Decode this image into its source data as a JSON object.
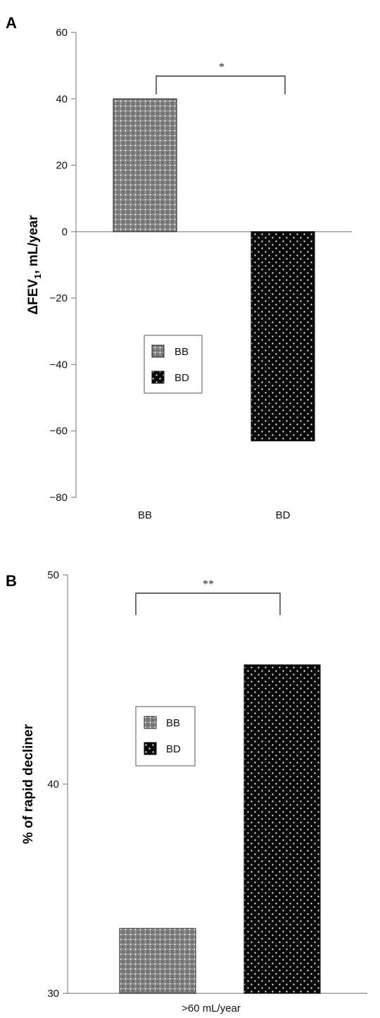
{
  "chart_data": [
    {
      "panel": "A",
      "type": "bar",
      "categories": [
        "BB",
        "BD"
      ],
      "values": [
        40,
        -63
      ],
      "ylabel_main": "ΔFEV",
      "ylabel_sub": "1",
      "ylabel_rest": ", mL/year",
      "ylim": [
        -80,
        60
      ],
      "yticks": [
        60,
        40,
        20,
        0,
        -20,
        -40,
        -60,
        -80
      ],
      "ytick_labels": [
        "60",
        "40",
        "20",
        "0",
        "−20",
        "−40",
        "−60",
        "−80"
      ],
      "significance": "*",
      "legend": [
        "BB",
        "BD"
      ],
      "legend_placement": "center-left",
      "grid": false
    },
    {
      "panel": "B",
      "type": "bar",
      "categories": [
        "BB",
        "BD"
      ],
      "values": [
        33.1,
        45.7
      ],
      "ylabel": "% of rapid decliner",
      "xlabel": ">60 mL/year",
      "ylim": [
        30,
        50
      ],
      "yticks": [
        50,
        40,
        30
      ],
      "ytick_labels": [
        "50",
        "40",
        "30"
      ],
      "significance": "**",
      "legend": [
        "BB",
        "BD"
      ],
      "legend_placement": "center-left",
      "grid": false
    }
  ],
  "colors": {
    "bb_fill": "#8c8c8c",
    "bd_fill": "#0a0a0a",
    "dots": "#ffffff",
    "axis": "#888888"
  }
}
